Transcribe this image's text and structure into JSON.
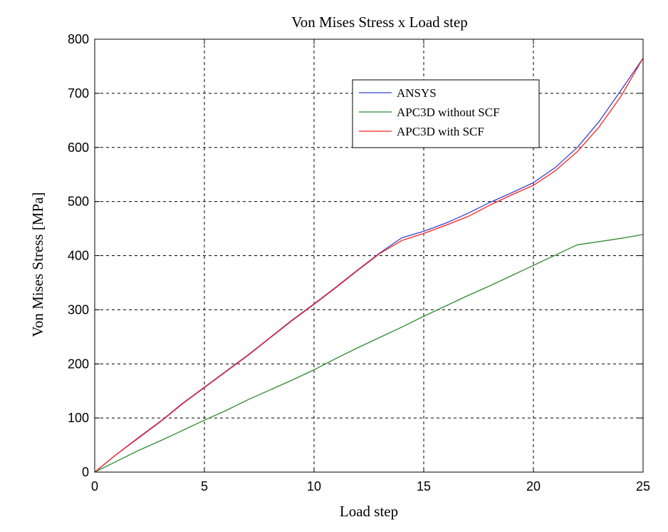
{
  "chart_data": {
    "type": "line",
    "title": "Von Mises Stress x Load step",
    "xlabel": "Load step",
    "ylabel": "Von Mises Stress [MPa]",
    "xlim": [
      0,
      25
    ],
    "ylim": [
      0,
      800
    ],
    "xticks": [
      0,
      5,
      10,
      15,
      20,
      25
    ],
    "yticks": [
      0,
      100,
      200,
      300,
      400,
      500,
      600,
      700,
      800
    ],
    "grid": true,
    "legend_position": "top-right",
    "series": [
      {
        "name": "ANSYS",
        "color": "#3344cc",
        "x": [
          0,
          1,
          2,
          3,
          4,
          5,
          6,
          7,
          8,
          9,
          10,
          11,
          12,
          13,
          14,
          15,
          16,
          17,
          18,
          19,
          20,
          21,
          22,
          23,
          24,
          25
        ],
        "y": [
          0,
          33,
          64,
          94,
          127,
          157,
          187,
          217,
          249,
          281,
          311,
          342,
          374,
          405,
          433,
          445,
          460,
          478,
          498,
          516,
          535,
          563,
          600,
          648,
          706,
          765
        ]
      },
      {
        "name": "APC3D without SCF",
        "color": "#2e8b2e",
        "x": [
          0,
          1,
          2,
          3,
          4,
          5,
          6,
          7,
          8,
          9,
          10,
          11,
          12,
          13,
          14,
          15,
          16,
          17,
          18,
          19,
          20,
          21,
          22,
          23,
          24,
          25
        ],
        "y": [
          0,
          20,
          40,
          58,
          77,
          96,
          114,
          134,
          152,
          170,
          189,
          210,
          230,
          249,
          268,
          288,
          307,
          326,
          344,
          363,
          382,
          401,
          420,
          426,
          432,
          439
        ]
      },
      {
        "name": "APC3D with SCF",
        "color": "#ff2020",
        "x": [
          0,
          1,
          2,
          3,
          4,
          5,
          6,
          7,
          8,
          9,
          10,
          11,
          12,
          13,
          14,
          15,
          16,
          17,
          18,
          19,
          20,
          21,
          22,
          23,
          24,
          25
        ],
        "y": [
          0,
          33,
          63,
          93,
          126,
          156,
          186,
          216,
          248,
          280,
          310,
          341,
          373,
          404,
          428,
          441,
          456,
          472,
          493,
          512,
          530,
          557,
          592,
          638,
          695,
          765
        ]
      }
    ]
  }
}
